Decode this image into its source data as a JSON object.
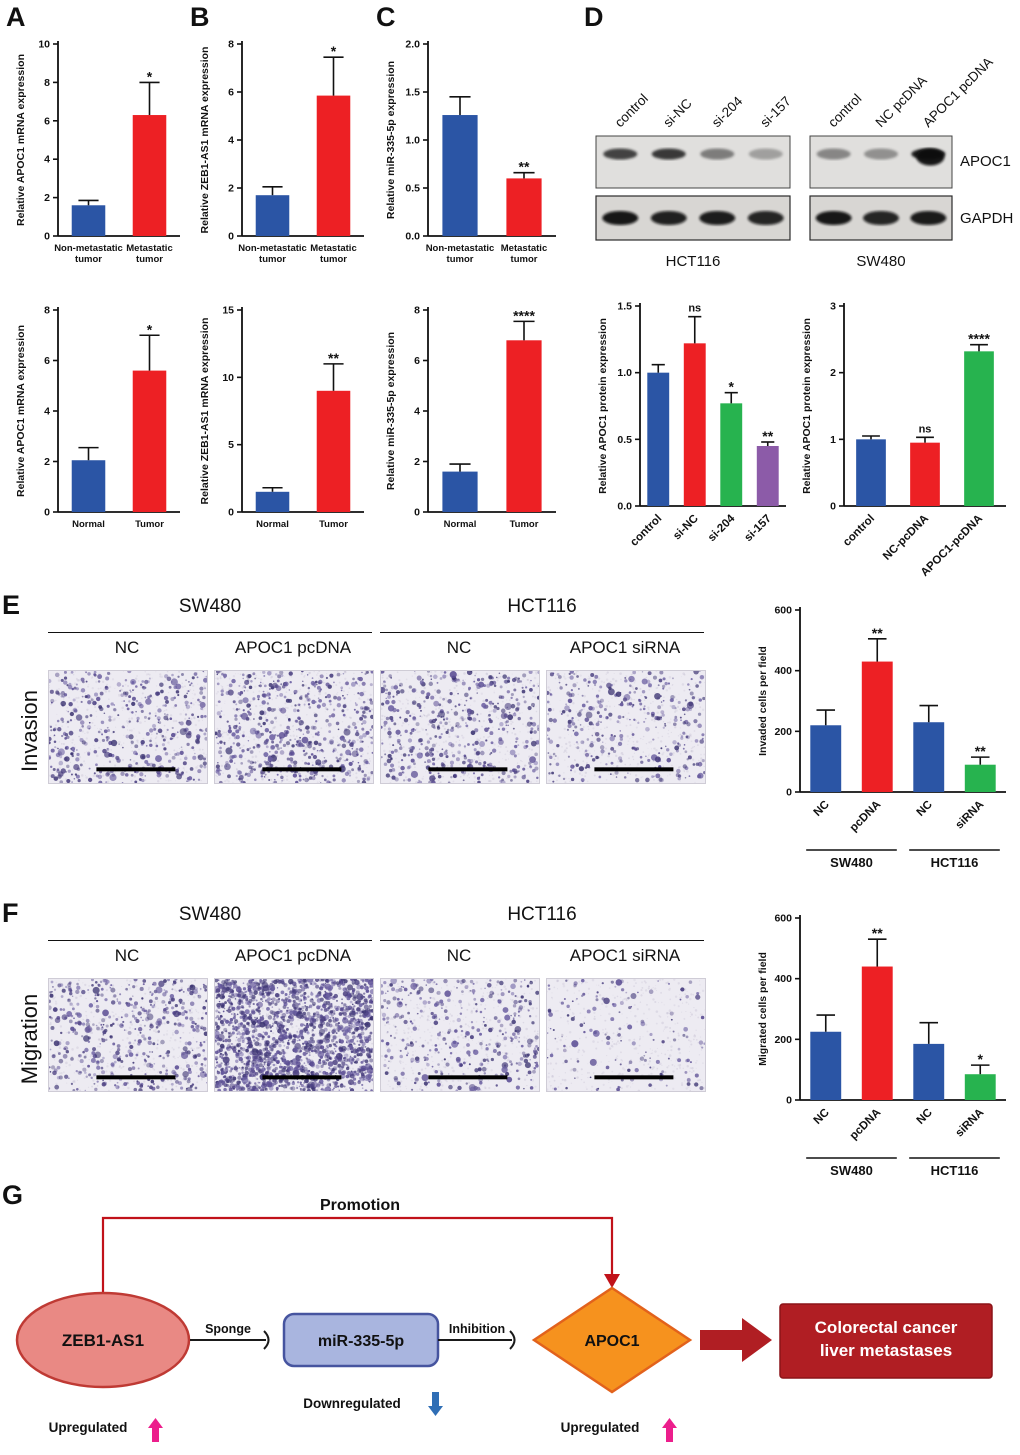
{
  "letters": {
    "a": "A",
    "b": "B",
    "c": "C",
    "d": "D",
    "e": "E",
    "f": "F",
    "g": "G"
  },
  "panel_d": {
    "blots": {
      "left": {
        "cell_line": "HCT116",
        "lanes": [
          "control",
          "si-NC",
          "si-204",
          "si-157"
        ],
        "apoc1_intensity": [
          0.8,
          0.85,
          0.5,
          0.32
        ],
        "gapdh_intensity": [
          0.95,
          0.9,
          0.92,
          0.88
        ]
      },
      "right": {
        "cell_line": "SW480",
        "lanes": [
          "control",
          "NC pcDNA",
          "APOC1 pcDNA"
        ],
        "apoc1_intensity": [
          0.45,
          0.4,
          1.0
        ],
        "gapdh_intensity": [
          0.95,
          0.88,
          0.93
        ]
      },
      "band_labels": [
        "APOC1",
        "GAPDH"
      ]
    }
  },
  "panel_e": {
    "row_label": "Invasion",
    "cell_lines": [
      "SW480",
      "HCT116"
    ],
    "image_labels": [
      "NC",
      "APOC1 pcDNA",
      "NC",
      "APOC1 siRNA"
    ],
    "images": [
      {
        "seed": 11,
        "n": 400
      },
      {
        "seed": 23,
        "n": 520
      },
      {
        "seed": 37,
        "n": 420
      },
      {
        "seed": 49,
        "n": 300
      }
    ]
  },
  "panel_f": {
    "row_label": "Migration",
    "cell_lines": [
      "SW480",
      "HCT116"
    ],
    "image_labels": [
      "NC",
      "APOC1 pcDNA",
      "NC",
      "APOC1 siRNA"
    ],
    "images": [
      {
        "seed": 61,
        "n": 430
      },
      {
        "seed": 73,
        "n": 1600
      },
      {
        "seed": 87,
        "n": 330
      },
      {
        "seed": 95,
        "n": 130
      }
    ]
  },
  "panel_g": {
    "promotion": "Promotion",
    "zeb": "ZEB1-AS1",
    "sponge": "Sponge",
    "mir": "miR-335-5p",
    "inhibition": "Inhibition",
    "apoc1": "APOC1",
    "result_line1": "Colorectal cancer",
    "result_line2": "liver metastases",
    "up_label_left": "Upregulated",
    "down_label": "Downregulated",
    "up_label_right": "Upregulated",
    "colors": {
      "promotion_line": "#c1121a",
      "connector": "#1a1a1a",
      "zeb_fill": "#e98984",
      "zeb_stroke": "#bf3a34",
      "mir_fill": "#a9b5df",
      "mir_stroke": "#46549f",
      "apoc1_fill": "#f6921e",
      "apoc1_stroke": "#e2621c",
      "result_fill": "#b01e23",
      "result_stroke": "#8c1418",
      "up_arrow": "#ec1e8c",
      "down_arrow": "#2f6eb5"
    }
  },
  "chart_data": [
    {
      "id": "a1",
      "type": "bar",
      "ylabel": "Relative APOC1 mRNA expression",
      "ylim": [
        0,
        10
      ],
      "yticks": [
        0,
        2,
        4,
        6,
        8,
        10
      ],
      "categories": [
        [
          "Non-metastatic",
          "tumor"
        ],
        [
          "Metastatic",
          "tumor"
        ]
      ],
      "values": [
        1.6,
        6.3
      ],
      "errors": [
        0.25,
        1.7
      ],
      "colors": [
        "#2b55a5",
        "#ed2024"
      ],
      "sig": [
        "",
        "*"
      ]
    },
    {
      "id": "b1",
      "type": "bar",
      "ylabel": "Relative ZEB1-AS1 mRNA expression",
      "ylim": [
        0,
        8
      ],
      "yticks": [
        0,
        2,
        4,
        6,
        8
      ],
      "categories": [
        [
          "Non-metastatic",
          "tumor"
        ],
        [
          "Metastatic",
          "tumor"
        ]
      ],
      "values": [
        1.7,
        5.85
      ],
      "errors": [
        0.35,
        1.6
      ],
      "colors": [
        "#2b55a5",
        "#ed2024"
      ],
      "sig": [
        "",
        "*"
      ]
    },
    {
      "id": "c1",
      "type": "bar",
      "ylabel": "Relative miR-335-5p expression",
      "ylim": [
        0,
        2
      ],
      "yticks": [
        0,
        0.5,
        1,
        1.5,
        2
      ],
      "ytick_labels": [
        "0.0",
        "0.5",
        "1.0",
        "1.5",
        "2.0"
      ],
      "categories": [
        [
          "Non-metastatic",
          "tumor"
        ],
        [
          "Metastatic",
          "tumor"
        ]
      ],
      "values": [
        1.26,
        0.6
      ],
      "errors": [
        0.19,
        0.06
      ],
      "colors": [
        "#2b55a5",
        "#ed2024"
      ],
      "sig": [
        "",
        "**"
      ]
    },
    {
      "id": "a2",
      "type": "bar",
      "ylabel": "Relative APOC1 mRNA expression",
      "ylim": [
        0,
        8
      ],
      "yticks": [
        0,
        2,
        4,
        6,
        8
      ],
      "categories": [
        "Normal",
        "Tumor"
      ],
      "values": [
        2.05,
        5.6
      ],
      "errors": [
        0.5,
        1.4
      ],
      "colors": [
        "#2b55a5",
        "#ed2024"
      ],
      "sig": [
        "",
        "*"
      ]
    },
    {
      "id": "b2",
      "type": "bar",
      "ylabel": "Relative ZEB1-AS1 mRNA expression",
      "ylim": [
        0,
        15
      ],
      "yticks": [
        0,
        5,
        10,
        15
      ],
      "categories": [
        "Normal",
        "Tumor"
      ],
      "values": [
        1.5,
        9.0
      ],
      "errors": [
        0.3,
        2.0
      ],
      "colors": [
        "#2b55a5",
        "#ed2024"
      ],
      "sig": [
        "",
        "**"
      ]
    },
    {
      "id": "c2",
      "type": "bar",
      "ylabel": "Relative miR-335-5p expression",
      "ylim": [
        0,
        8
      ],
      "yticks": [
        0,
        2,
        4,
        6,
        8
      ],
      "categories": [
        "Normal",
        "Tumor"
      ],
      "values": [
        1.6,
        6.8
      ],
      "errors": [
        0.3,
        0.75
      ],
      "colors": [
        "#2b55a5",
        "#ed2024"
      ],
      "sig": [
        "",
        "****"
      ]
    },
    {
      "id": "d1",
      "type": "bar",
      "ylabel": "Relative APOC1 protein expression",
      "ylim": [
        0,
        1.5
      ],
      "yticks": [
        0,
        0.5,
        1,
        1.5
      ],
      "ytick_labels": [
        "0.0",
        "0.5",
        "1.0",
        "1.5"
      ],
      "categories": [
        "control",
        "si-NC",
        "si-204",
        "si-157"
      ],
      "values": [
        1.0,
        1.22,
        0.77,
        0.45
      ],
      "errors": [
        0.06,
        0.2,
        0.08,
        0.03
      ],
      "colors": [
        "#2b55a5",
        "#ed2024",
        "#27b34f",
        "#8c5ba8"
      ],
      "sig": [
        "",
        "ns",
        "*",
        "**"
      ],
      "rotate_x": true,
      "barw": 0.6
    },
    {
      "id": "d2",
      "type": "bar",
      "ylabel": "Relative APOC1 protein expression",
      "ylim": [
        0,
        3
      ],
      "yticks": [
        0,
        1,
        2,
        3
      ],
      "categories": [
        "control",
        "NC-pcDNA",
        "APOC1-pcDNA"
      ],
      "values": [
        1.0,
        0.95,
        2.32
      ],
      "errors": [
        0.05,
        0.08,
        0.1
      ],
      "colors": [
        "#2b55a5",
        "#ed2024",
        "#27b34f"
      ],
      "sig": [
        "",
        "ns",
        "****"
      ],
      "rotate_x": true,
      "barw": 0.55
    },
    {
      "id": "e",
      "type": "bar",
      "ylabel": "Invaded cells per field",
      "ylim": [
        0,
        600
      ],
      "yticks": [
        0,
        200,
        400,
        600
      ],
      "categories": [
        "NC",
        "pcDNA",
        "NC",
        "siRNA"
      ],
      "values": [
        220,
        430,
        230,
        90
      ],
      "errors": [
        50,
        75,
        55,
        25
      ],
      "colors": [
        "#2b55a5",
        "#ed2024",
        "#2b55a5",
        "#27b34f"
      ],
      "sig": [
        "",
        "**",
        "",
        "**"
      ],
      "rotate_x": true,
      "barw": 0.6,
      "groups": [
        {
          "label": "SW480",
          "from": 0,
          "to": 1
        },
        {
          "label": "HCT116",
          "from": 2,
          "to": 3
        }
      ]
    },
    {
      "id": "f",
      "type": "bar",
      "ylabel": "Migrated cells per field",
      "ylim": [
        0,
        600
      ],
      "yticks": [
        0,
        200,
        400,
        600
      ],
      "categories": [
        "NC",
        "pcDNA",
        "NC",
        "siRNA"
      ],
      "values": [
        225,
        440,
        185,
        85
      ],
      "errors": [
        55,
        90,
        70,
        30
      ],
      "colors": [
        "#2b55a5",
        "#ed2024",
        "#2b55a5",
        "#27b34f"
      ],
      "sig": [
        "",
        "**",
        "",
        "*"
      ],
      "rotate_x": true,
      "barw": 0.6,
      "groups": [
        {
          "label": "SW480",
          "from": 0,
          "to": 1
        },
        {
          "label": "HCT116",
          "from": 2,
          "to": 3
        }
      ]
    }
  ]
}
